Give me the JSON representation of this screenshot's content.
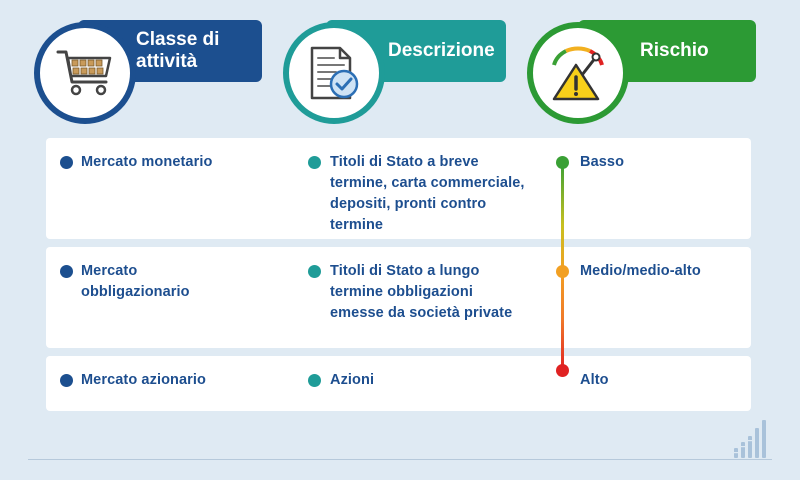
{
  "headers": [
    {
      "label": "Classe di attività",
      "icon": "shopping-cart-icon",
      "color": "#1c4f8f"
    },
    {
      "label": "Descrizione",
      "icon": "document-check-icon",
      "color": "#1f9c98"
    },
    {
      "label": "Rischio",
      "icon": "risk-gauge-warning-icon",
      "color": "#2c9a34"
    }
  ],
  "rows": [
    {
      "asset_class": "Mercato monetario",
      "description": "Titoli di Stato a breve termine, carta commerciale, depositi, pronti contro termine",
      "risk": "Basso",
      "risk_color": "#3aa035"
    },
    {
      "asset_class": "Mercato obbligazionario",
      "description": "Titoli di Stato a lungo termine obbligazioni emesse da società private",
      "risk": "Medio/medio-alto",
      "risk_color": "#f2a023"
    },
    {
      "asset_class": "Mercato azionario",
      "description": "Azioni",
      "risk": "Alto",
      "risk_color": "#e02222"
    }
  ],
  "colors": {
    "navy": "#1c4f8f",
    "teal": "#1f9c98",
    "green": "#2c9a34"
  },
  "logo": "bar-chart-logo-icon"
}
